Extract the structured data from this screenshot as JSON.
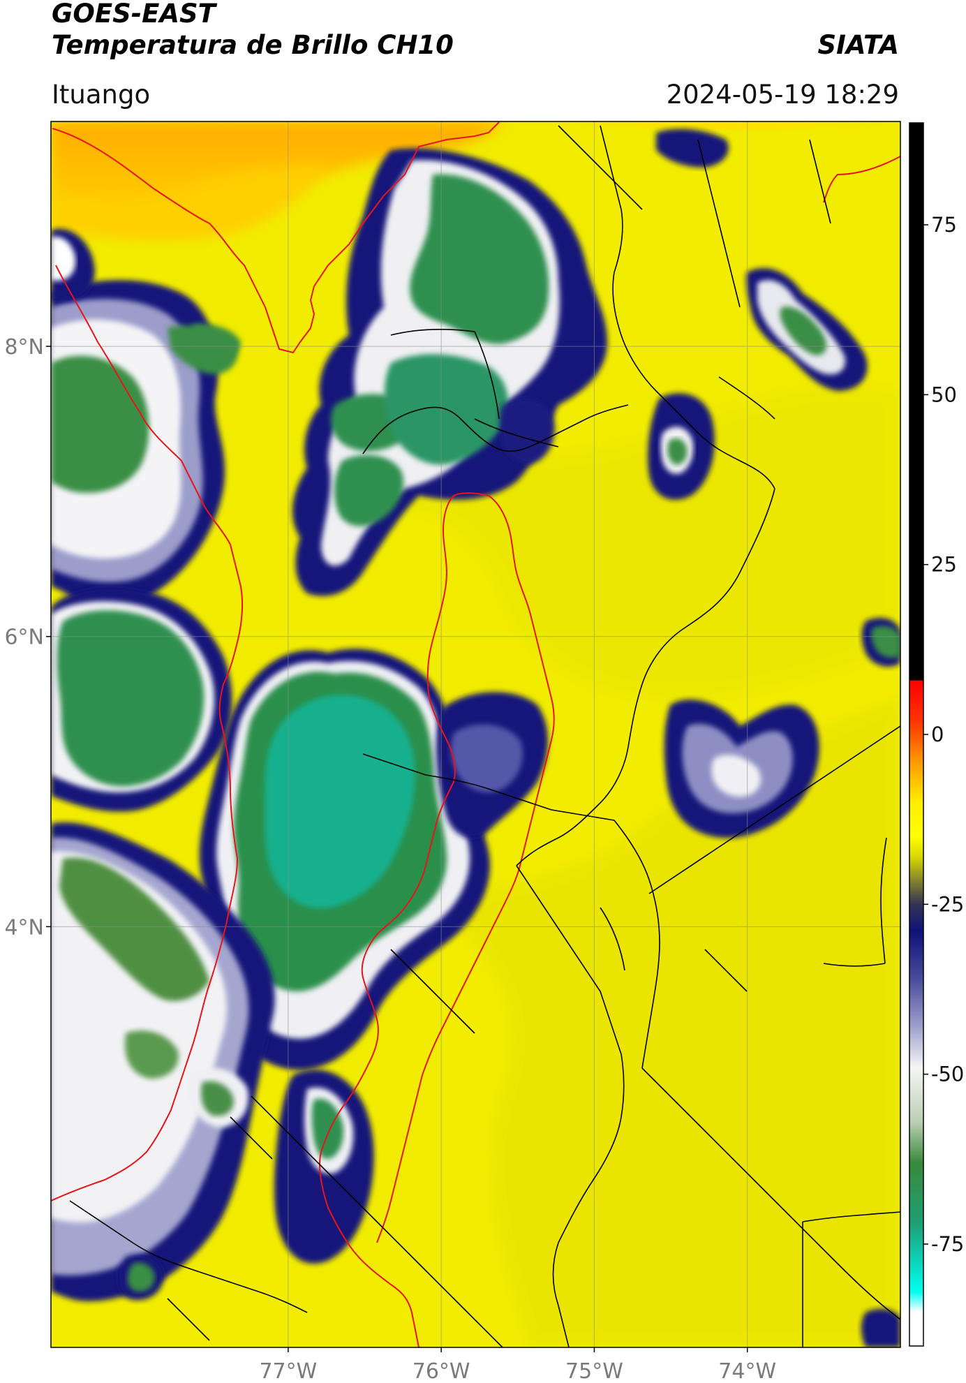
{
  "header": {
    "satellite": "GOES-EAST",
    "product": "Temperatura de Brillo CH10",
    "agency": "SIATA",
    "location": "Ituango",
    "datetime": "2024-05-19 18:29"
  },
  "map": {
    "lon_range": [
      -78.55,
      -73.0
    ],
    "lat_range": [
      1.1,
      9.55
    ],
    "lon_ticks": [
      {
        "value": -77,
        "label": "77°W"
      },
      {
        "value": -76,
        "label": "76°W"
      },
      {
        "value": -75,
        "label": "75°W"
      },
      {
        "value": -74,
        "label": "74°W"
      }
    ],
    "lat_ticks": [
      {
        "value": 8,
        "label": "8°N"
      },
      {
        "value": 6,
        "label": "6°N"
      },
      {
        "value": 4,
        "label": "4°N"
      }
    ],
    "gridlines": true,
    "colors": {
      "warm_background": "#f4ee00",
      "warm_north": "#ffb000",
      "cold_blue": "#1a1a80",
      "cold_white": "#f3f3f8",
      "cold_green": "#2f8a4a",
      "coldest_teal": "#1fb99a",
      "border_black": "#000000",
      "border_red": "#e8141a"
    }
  },
  "colorbar": {
    "range": [
      -90,
      90
    ],
    "ticks": [
      {
        "value": 75,
        "label": "75"
      },
      {
        "value": 50,
        "label": "50"
      },
      {
        "value": 25,
        "label": "25"
      },
      {
        "value": 0,
        "label": "0"
      },
      {
        "value": -25,
        "label": "-25"
      },
      {
        "value": -50,
        "label": "-50"
      },
      {
        "value": -75,
        "label": "-75"
      }
    ],
    "stops": [
      {
        "value": 90,
        "color": "#000000"
      },
      {
        "value": 8,
        "color": "#000000"
      },
      {
        "value": 7.9,
        "color": "#ff0000"
      },
      {
        "value": 2,
        "color": "#ff3300"
      },
      {
        "value": -4,
        "color": "#ff9900"
      },
      {
        "value": -10,
        "color": "#ffee00"
      },
      {
        "value": -15,
        "color": "#ffff00"
      },
      {
        "value": -18,
        "color": "#d8d800"
      },
      {
        "value": -22,
        "color": "#777733"
      },
      {
        "value": -25,
        "color": "#333355"
      },
      {
        "value": -29,
        "color": "#0f1278"
      },
      {
        "value": -36,
        "color": "#4a4c9c"
      },
      {
        "value": -43,
        "color": "#9e9fcb"
      },
      {
        "value": -49,
        "color": "#f5f5f5"
      },
      {
        "value": -57,
        "color": "#bccfb4"
      },
      {
        "value": -63,
        "color": "#3a8a3a"
      },
      {
        "value": -72,
        "color": "#1e9f76"
      },
      {
        "value": -82,
        "color": "#00ffee"
      },
      {
        "value": -85,
        "color": "#ffffff"
      },
      {
        "value": -90,
        "color": "#ffffff"
      }
    ]
  }
}
